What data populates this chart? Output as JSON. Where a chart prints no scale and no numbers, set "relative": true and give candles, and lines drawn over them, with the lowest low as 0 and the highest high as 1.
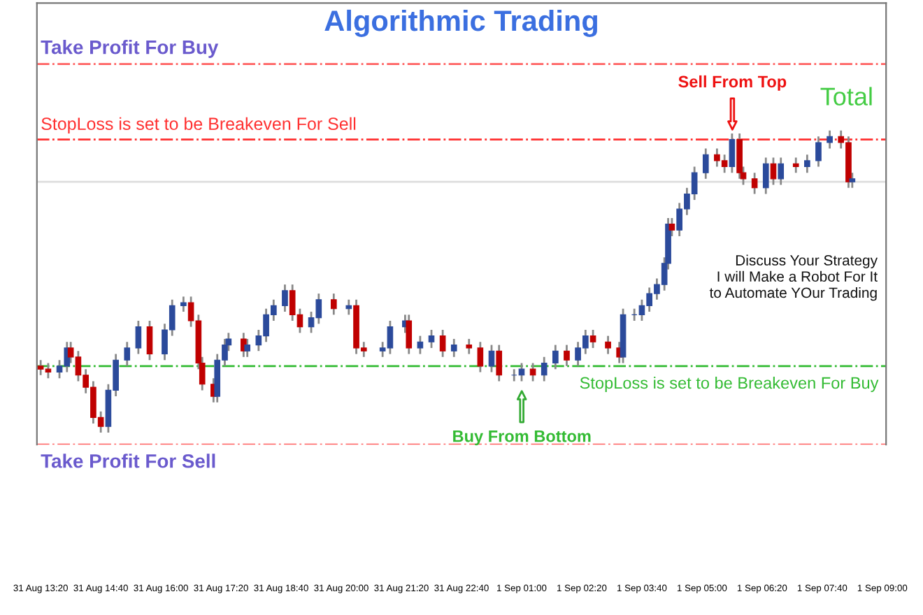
{
  "chart_data": {
    "type": "candlestick",
    "title": "Algorithmic Trading",
    "relative": true,
    "categories": [
      "31 Aug 13:20",
      null,
      null,
      null,
      null,
      null,
      null,
      null,
      null,
      null,
      null,
      null,
      null,
      null,
      null,
      null,
      "31 Aug 14:40",
      null,
      null,
      null,
      null,
      null,
      null,
      null,
      null,
      null,
      null,
      null,
      null,
      null,
      null,
      null,
      "31 Aug 16:00",
      null,
      null,
      null,
      null,
      null,
      null,
      null,
      null,
      null,
      null,
      null,
      null,
      null,
      null,
      null,
      "31 Aug 17:20",
      null,
      null,
      null,
      null,
      null,
      null,
      null,
      null,
      null,
      null,
      null,
      null,
      null,
      null,
      null,
      "31 Aug 18:40",
      null,
      null,
      null,
      null,
      null,
      null,
      null,
      null,
      null,
      null,
      null,
      null,
      null,
      null,
      null,
      "31 Aug 20:00",
      null,
      null,
      null,
      null,
      null,
      null,
      null,
      null,
      null,
      null,
      null,
      null,
      null,
      null,
      null,
      "31 Aug 21:20",
      null,
      null,
      null,
      null,
      null,
      null,
      null,
      null,
      null,
      null,
      null,
      null,
      null,
      null,
      null,
      "31 Aug 22:40",
      null,
      null,
      null,
      null,
      null,
      null,
      null,
      null,
      null,
      null,
      null,
      null,
      null,
      null,
      null,
      "1 Sep 01:00",
      null,
      null,
      null,
      null,
      null,
      null,
      null,
      null,
      null,
      null,
      null,
      null,
      null,
      null,
      null,
      "1 Sep 02:20",
      null,
      null,
      null,
      null,
      null,
      null,
      null,
      null,
      null,
      null,
      null,
      null,
      null,
      null,
      null,
      "1 Sep 03:40",
      null,
      null,
      null,
      null,
      null,
      null,
      null,
      null,
      null,
      null,
      null,
      null,
      null,
      null,
      null,
      "1 Sep 05:00",
      null,
      null,
      null,
      null,
      null,
      null,
      null,
      null,
      null,
      null,
      null,
      null,
      null,
      null,
      null,
      "1 Sep 06:20",
      null,
      null,
      null,
      null,
      null,
      null,
      null,
      null,
      null,
      null,
      null,
      null,
      null,
      null,
      null,
      "1 Sep 07:40",
      null,
      null,
      null,
      null,
      null,
      null,
      null,
      null,
      null,
      null,
      null,
      null,
      null,
      null,
      null,
      "1 Sep 09:00"
    ],
    "ohlc": [
      [
        0.22,
        0.24,
        0.19,
        0.21
      ],
      null,
      [
        0.21,
        0.23,
        0.18,
        0.2
      ],
      null,
      null,
      [
        0.2,
        0.24,
        0.18,
        0.22
      ],
      null,
      [
        0.22,
        0.3,
        0.2,
        0.28
      ],
      [
        0.28,
        0.3,
        0.23,
        0.25
      ],
      null,
      [
        0.25,
        0.27,
        0.17,
        0.19
      ],
      null,
      [
        0.19,
        0.21,
        0.13,
        0.15
      ],
      null,
      [
        0.15,
        0.17,
        0.03,
        0.05
      ],
      null,
      [
        0.05,
        0.07,
        0.0,
        0.02
      ],
      null,
      [
        0.02,
        0.16,
        0.0,
        0.14
      ],
      null,
      [
        0.14,
        0.26,
        0.12,
        0.24
      ],
      null,
      null,
      [
        0.24,
        0.3,
        0.22,
        0.28
      ],
      null,
      null,
      [
        0.28,
        0.37,
        0.26,
        0.35
      ],
      null,
      null,
      [
        0.35,
        0.37,
        0.24,
        0.26
      ],
      null,
      null,
      null,
      [
        0.26,
        0.36,
        0.24,
        0.34
      ],
      null,
      [
        0.34,
        0.44,
        0.32,
        0.42
      ],
      null,
      null,
      [
        0.42,
        0.45,
        0.4,
        0.43
      ],
      null,
      [
        0.43,
        0.45,
        0.35,
        0.37
      ],
      null,
      [
        0.37,
        0.39,
        0.21,
        0.23
      ],
      [
        0.23,
        0.25,
        0.14,
        0.16
      ],
      null,
      null,
      [
        0.16,
        0.18,
        0.1,
        0.12
      ],
      [
        0.12,
        0.26,
        0.1,
        0.24
      ],
      null,
      [
        0.24,
        0.31,
        0.22,
        0.29
      ],
      [
        0.29,
        0.33,
        0.27,
        0.31
      ],
      null,
      null,
      null,
      [
        0.31,
        0.33,
        0.25,
        0.27
      ],
      [
        0.27,
        0.31,
        0.25,
        0.29
      ],
      null,
      null,
      [
        0.29,
        0.34,
        0.27,
        0.32
      ],
      null,
      [
        0.32,
        0.41,
        0.3,
        0.39
      ],
      null,
      [
        0.39,
        0.44,
        0.37,
        0.42
      ],
      null,
      null,
      [
        0.42,
        0.49,
        0.4,
        0.47
      ],
      null,
      [
        0.47,
        0.49,
        0.37,
        0.39
      ],
      null,
      [
        0.39,
        0.41,
        0.33,
        0.35
      ],
      null,
      null,
      [
        0.35,
        0.4,
        0.33,
        0.38
      ],
      null,
      [
        0.38,
        0.46,
        0.36,
        0.44
      ],
      null,
      null,
      null,
      [
        0.44,
        0.46,
        0.39,
        0.41
      ],
      null,
      null,
      null,
      [
        0.41,
        0.44,
        0.39,
        0.42
      ],
      null,
      [
        0.42,
        0.44,
        0.26,
        0.28
      ],
      null,
      [
        0.28,
        0.3,
        0.25,
        0.27
      ],
      null,
      null,
      null,
      null,
      [
        0.27,
        0.3,
        0.25,
        0.28
      ],
      null,
      [
        0.28,
        0.37,
        0.26,
        0.35
      ],
      null,
      null,
      null,
      [
        0.35,
        0.39,
        0.33,
        0.37
      ],
      [
        0.37,
        0.39,
        0.26,
        0.28
      ],
      null,
      null,
      [
        0.28,
        0.32,
        0.26,
        0.3
      ],
      null,
      null,
      [
        0.3,
        0.34,
        0.28,
        0.32
      ],
      null,
      null,
      [
        0.32,
        0.34,
        0.25,
        0.27
      ],
      null,
      null,
      [
        0.27,
        0.31,
        0.25,
        0.29
      ],
      null,
      null,
      null,
      [
        0.29,
        0.31,
        0.26,
        0.28
      ],
      null,
      null,
      [
        0.28,
        0.3,
        0.2,
        0.22
      ],
      null,
      null,
      [
        0.22,
        0.29,
        0.2,
        0.27
      ],
      null,
      [
        0.27,
        0.29,
        0.17,
        0.19
      ],
      null,
      null,
      null,
      [
        0.19,
        0.21,
        0.17,
        0.19
      ],
      null,
      [
        0.19,
        0.23,
        0.17,
        0.21
      ],
      null,
      null,
      [
        0.21,
        0.23,
        0.17,
        0.19
      ],
      null,
      null,
      [
        0.19,
        0.25,
        0.17,
        0.23
      ],
      null,
      null,
      [
        0.23,
        0.29,
        0.21,
        0.27
      ],
      null,
      null,
      [
        0.27,
        0.29,
        0.22,
        0.24
      ],
      null,
      null,
      [
        0.24,
        0.3,
        0.22,
        0.28
      ],
      null,
      [
        0.28,
        0.34,
        0.26,
        0.32
      ],
      null,
      [
        0.32,
        0.34,
        0.28,
        0.3
      ],
      null,
      null,
      null,
      [
        0.3,
        0.32,
        0.26,
        0.28
      ],
      null,
      null,
      [
        0.28,
        0.3,
        0.23,
        0.25
      ],
      [
        0.25,
        0.41,
        0.23,
        0.39
      ],
      null,
      null,
      [
        0.39,
        0.41,
        0.37,
        0.39
      ],
      null,
      [
        0.39,
        0.44,
        0.37,
        0.42
      ],
      null,
      [
        0.42,
        0.48,
        0.4,
        0.46
      ],
      null,
      [
        0.46,
        0.51,
        0.44,
        0.49
      ],
      null,
      [
        0.49,
        0.58,
        0.47,
        0.56
      ],
      [
        0.56,
        0.71,
        0.54,
        0.69
      ],
      [
        0.69,
        0.71,
        0.65,
        0.67
      ],
      null,
      [
        0.67,
        0.76,
        0.65,
        0.74
      ],
      null,
      [
        0.74,
        0.81,
        0.72,
        0.79
      ],
      null,
      [
        0.79,
        0.88,
        0.77,
        0.86
      ],
      null,
      null,
      [
        0.86,
        0.94,
        0.84,
        0.92
      ],
      null,
      null,
      [
        0.92,
        0.94,
        0.88,
        0.9
      ],
      null,
      [
        0.9,
        0.92,
        0.86,
        0.88
      ],
      null,
      [
        0.88,
        0.99,
        0.86,
        0.97
      ],
      null,
      [
        0.97,
        0.99,
        0.84,
        0.86
      ],
      [
        0.86,
        0.88,
        0.82,
        0.84
      ],
      null,
      null,
      [
        0.84,
        0.86,
        0.79,
        0.81
      ],
      null,
      null,
      [
        0.81,
        0.91,
        0.79,
        0.89
      ],
      null,
      [
        0.89,
        0.91,
        0.82,
        0.84
      ],
      null,
      [
        0.84,
        0.91,
        0.82,
        0.89
      ],
      null,
      null,
      null,
      [
        0.89,
        0.91,
        0.86,
        0.88
      ],
      null,
      null,
      [
        0.88,
        0.92,
        0.86,
        0.9
      ],
      null,
      null,
      [
        0.9,
        0.98,
        0.88,
        0.96
      ],
      null,
      null,
      [
        0.96,
        1.0,
        0.94,
        0.98
      ],
      null,
      null,
      [
        0.98,
        1.0,
        0.94,
        0.96
      ],
      null,
      [
        0.96,
        0.98,
        0.81,
        0.83
      ],
      [
        0.83,
        0.86,
        0.81,
        0.84
      ],
      null,
      null,
      null,
      null,
      null,
      null,
      null,
      null
    ],
    "tick_labels": "x",
    "ref_lines": [
      {
        "axis": "y",
        "value": 1.22,
        "label": "Take Profit For Buy",
        "color": "#ff6060",
        "line_style": "dashdot"
      },
      {
        "axis": "y",
        "value": 0.97,
        "label": "StopLoss is set to be Breakeven For Sell",
        "color": "#ff3030",
        "line_style": "dashdot"
      },
      {
        "axis": "y",
        "value": 0.83,
        "label": null,
        "color": "#dddddd",
        "line_style": "solid"
      },
      {
        "axis": "y",
        "value": 0.22,
        "label": "StopLoss is set to be Breakeven For Buy",
        "color": "#33bb33",
        "line_style": "dashdot"
      },
      {
        "axis": "y",
        "value": -0.04,
        "label": "Take Profit For Sell",
        "color": "#ff6060",
        "line_style": "dashdot"
      }
    ],
    "annotations": [
      "Sell From Top",
      "Buy From Bottom",
      "Total",
      "Discuss Your Strategy\nI will Make a Robot For It\nto Automate YOur Trading"
    ]
  }
}
